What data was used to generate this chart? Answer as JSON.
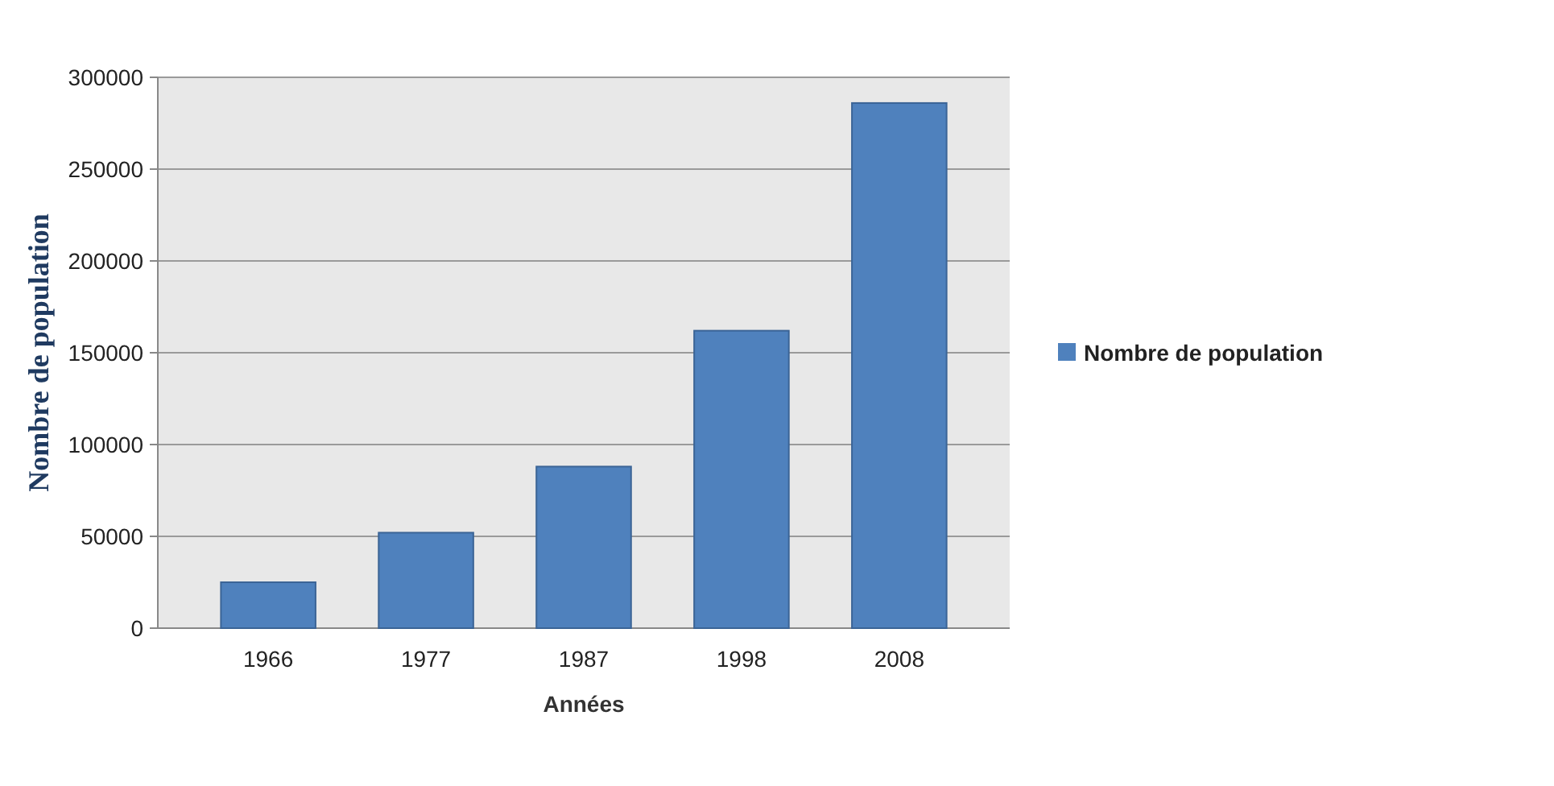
{
  "chart_data": {
    "type": "bar",
    "ylabel": "Nombre de population",
    "xlabel": "Années",
    "categories": [
      "1966",
      "1977",
      "1987",
      "1998",
      "2008"
    ],
    "series": [
      {
        "name": "Nombre de population",
        "color": "#4f81bd",
        "values": [
          25000,
          52000,
          88000,
          162000,
          286000
        ]
      }
    ],
    "ylim": [
      0,
      300000
    ],
    "yticks": [
      0,
      50000,
      100000,
      150000,
      200000,
      250000,
      300000
    ],
    "grid": "y",
    "legend": "right"
  }
}
